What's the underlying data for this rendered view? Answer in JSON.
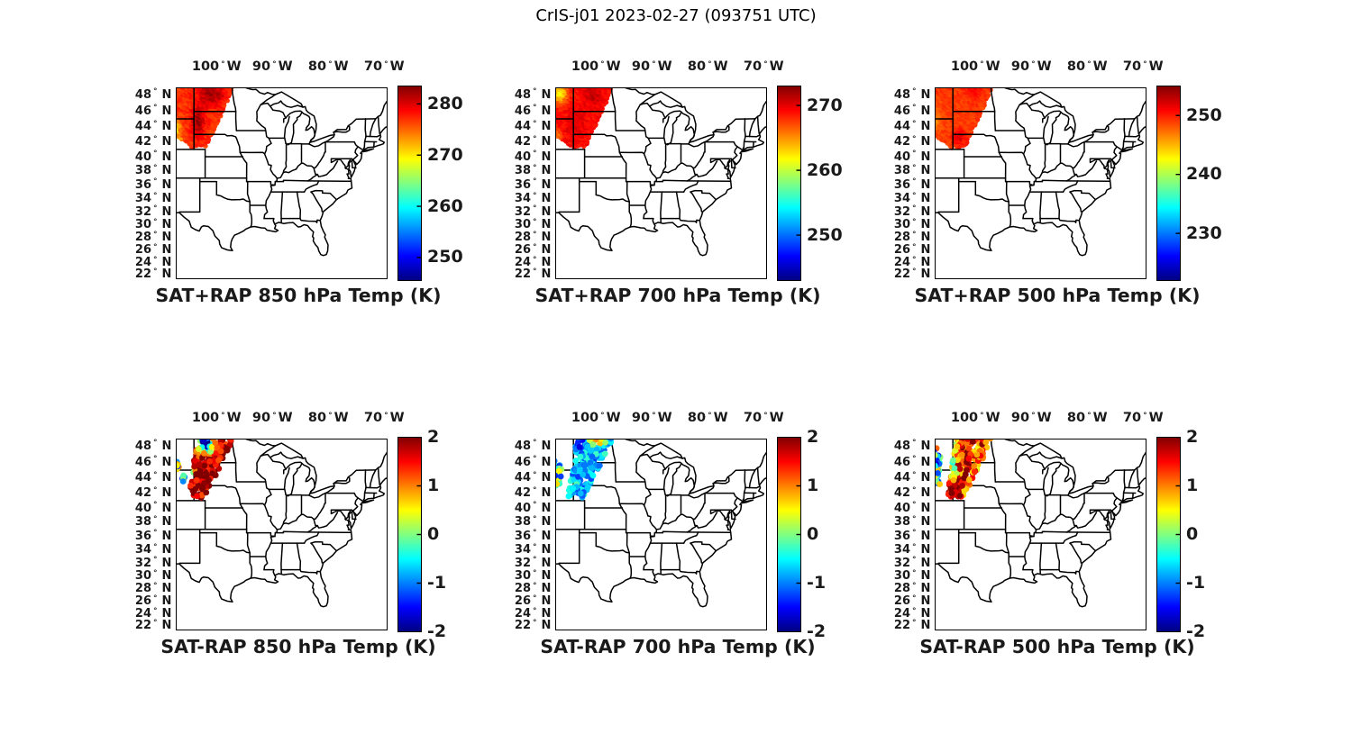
{
  "figure_title": "CrIS-j01 2023-02-27 (093751 UTC)",
  "colors": {
    "background": "#ffffff",
    "map_line": "#000000",
    "text": "#1a1a1a",
    "colormap": "jet"
  },
  "axes": {
    "lon_ticks": [
      100,
      90,
      80,
      70
    ],
    "lon_suffix": "W",
    "lat_ticks": [
      48,
      46,
      44,
      42,
      40,
      38,
      36,
      34,
      32,
      30,
      28,
      26,
      24,
      22
    ],
    "lat_suffix": "N",
    "lon_range_west_to_east": [
      107.3,
      69.4
    ],
    "lat_range_south_to_north": [
      21.4,
      48.9
    ]
  },
  "chart_data": [
    {
      "type": "scatter",
      "title": "SAT+RAP 850 hPa Temp (K)",
      "row": 0,
      "col": 0,
      "colorbar": {
        "min": 245.5,
        "max": 283.5,
        "ticks": [
          280,
          270,
          260,
          250
        ]
      },
      "swath": {
        "mode": "dense",
        "radius": 2.6,
        "polygon": [
          [
            -107.9,
            49.45
          ],
          [
            -96.6,
            49.45
          ],
          [
            -101.8,
            41.4
          ],
          [
            -104.3,
            41.2
          ],
          [
            -107.9,
            43.3
          ]
        ],
        "field": {
          "base": 277,
          "noise": 1.2,
          "blobs": [
            [
              -100.8,
              48.2,
              2.2,
              1.4,
              5.5
            ],
            [
              -103.2,
              44.8,
              1.2,
              1.9,
              5.5
            ],
            [
              -107.3,
              44.0,
              0.9,
              1.0,
              -8.0
            ],
            [
              -107.5,
              48.9,
              0.7,
              0.5,
              -3.0
            ],
            [
              -106.6,
              42.4,
              0.8,
              0.6,
              -4.0
            ]
          ]
        },
        "clusters": []
      }
    },
    {
      "type": "scatter",
      "title": "SAT+RAP 700 hPa Temp (K)",
      "row": 0,
      "col": 1,
      "colorbar": {
        "min": 243,
        "max": 273,
        "ticks": [
          270,
          260,
          250
        ]
      },
      "swath": {
        "mode": "dense",
        "radius": 2.6,
        "polygon": [
          [
            -107.9,
            49.45
          ],
          [
            -96.6,
            49.45
          ],
          [
            -101.8,
            41.4
          ],
          [
            -104.3,
            41.2
          ],
          [
            -107.9,
            43.3
          ]
        ],
        "field": {
          "base": 269,
          "noise": 0.9,
          "blobs": [
            [
              -106.3,
              48.2,
              1.4,
              1.1,
              -7.0
            ],
            [
              -100.5,
              48.0,
              1.6,
              1.2,
              2.0
            ],
            [
              -103.5,
              44.5,
              1.5,
              2.0,
              1.5
            ],
            [
              -106.9,
              43.0,
              0.9,
              0.9,
              -3.0
            ]
          ]
        },
        "clusters": []
      }
    },
    {
      "type": "scatter",
      "title": "SAT+RAP 500 hPa Temp (K)",
      "row": 0,
      "col": 2,
      "colorbar": {
        "min": 222,
        "max": 255,
        "ticks": [
          250,
          240,
          230
        ]
      },
      "swath": {
        "mode": "dense",
        "radius": 2.6,
        "polygon": [
          [
            -107.9,
            49.45
          ],
          [
            -96.6,
            49.45
          ],
          [
            -101.8,
            41.4
          ],
          [
            -104.3,
            41.2
          ],
          [
            -107.9,
            43.3
          ]
        ],
        "field": {
          "base": 249,
          "noise": 0.8,
          "blobs": [
            [
              -102.8,
              42.8,
              1.2,
              1.0,
              3.0
            ],
            [
              -100.3,
              48.5,
              2.0,
              1.0,
              1.5
            ],
            [
              -107.0,
              45.0,
              1.0,
              1.3,
              -2.5
            ]
          ]
        },
        "clusters": []
      }
    },
    {
      "type": "scatter",
      "title": "SAT-RAP 850 hPa Temp (K)",
      "row": 1,
      "col": 0,
      "colorbar": {
        "min": -2,
        "max": 2,
        "ticks": [
          2,
          1,
          0,
          -1,
          -2
        ]
      },
      "swath": {
        "mode": "sparse",
        "radius": 3.4,
        "count": 215,
        "polygon": [
          [
            -103.3,
            49.45
          ],
          [
            -96.6,
            49.45
          ],
          [
            -102.3,
            41.3
          ],
          [
            -105.1,
            41.6
          ]
        ],
        "field": {
          "base": 1.9,
          "noise": 0.7,
          "blobs": [
            [
              -101.9,
              48.3,
              1.5,
              1.2,
              -3.9
            ],
            [
              -97.6,
              49.3,
              1.0,
              0.4,
              -1.5
            ],
            [
              -104.5,
              44.7,
              0.5,
              1.1,
              -2.6
            ]
          ]
        },
        "clusters": [
          {
            "c": [
              -107.1,
              45.6
            ],
            "r": [
              0.9,
              0.8
            ],
            "n": 26,
            "base": -0.2,
            "noise": 1.3
          },
          {
            "c": [
              -105.9,
              43.9
            ],
            "r": [
              0.4,
              0.5
            ],
            "n": 8,
            "base": -0.6,
            "noise": 1.0
          }
        ]
      }
    },
    {
      "type": "scatter",
      "title": "SAT-RAP 700 hPa Temp (K)",
      "row": 1,
      "col": 1,
      "colorbar": {
        "min": -2,
        "max": 2,
        "ticks": [
          2,
          1,
          0,
          -1,
          -2
        ]
      },
      "swath": {
        "mode": "sparse",
        "radius": 3.4,
        "count": 245,
        "polygon": [
          [
            -103.3,
            49.45
          ],
          [
            -96.6,
            49.45
          ],
          [
            -102.3,
            41.3
          ],
          [
            -105.1,
            41.6
          ]
        ],
        "field": {
          "base": -0.8,
          "noise": 0.55,
          "blobs": [
            [
              -100.0,
              48.8,
              1.7,
              0.8,
              1.9
            ],
            [
              -102.9,
              48.6,
              1.0,
              0.9,
              -1.1
            ],
            [
              -104.6,
              42.8,
              0.9,
              0.8,
              0.7
            ]
          ]
        },
        "clusters": [
          {
            "c": [
              -106.9,
              44.3
            ],
            "r": [
              0.9,
              1.6
            ],
            "n": 60,
            "base": -0.3,
            "noise": 1.1
          }
        ]
      }
    },
    {
      "type": "scatter",
      "title": "SAT-RAP 500 hPa Temp (K)",
      "row": 1,
      "col": 2,
      "colorbar": {
        "min": -2,
        "max": 2,
        "ticks": [
          2,
          1,
          0,
          -1,
          -2
        ]
      },
      "swath": {
        "mode": "sparse",
        "radius": 3.4,
        "count": 255,
        "polygon": [
          [
            -103.3,
            49.45
          ],
          [
            -96.6,
            49.45
          ],
          [
            -102.3,
            41.3
          ],
          [
            -105.1,
            41.6
          ]
        ],
        "field": {
          "base": 1.2,
          "noise": 0.8,
          "blobs": [
            [
              -104.0,
              48.8,
              0.5,
              0.7,
              -3.4
            ],
            [
              -100.0,
              49.0,
              1.5,
              0.6,
              0.6
            ],
            [
              -103.9,
              45.8,
              0.6,
              1.5,
              -0.9
            ],
            [
              -103.6,
              42.6,
              1.0,
              0.8,
              1.2
            ],
            [
              -101.6,
              46.5,
              0.7,
              2.2,
              0.9
            ]
          ]
        },
        "clusters": [
          {
            "c": [
              -107.1,
              45.4
            ],
            "r": [
              1.0,
              2.7
            ],
            "n": 68,
            "base": -0.1,
            "noise": 1.5
          }
        ]
      }
    }
  ]
}
